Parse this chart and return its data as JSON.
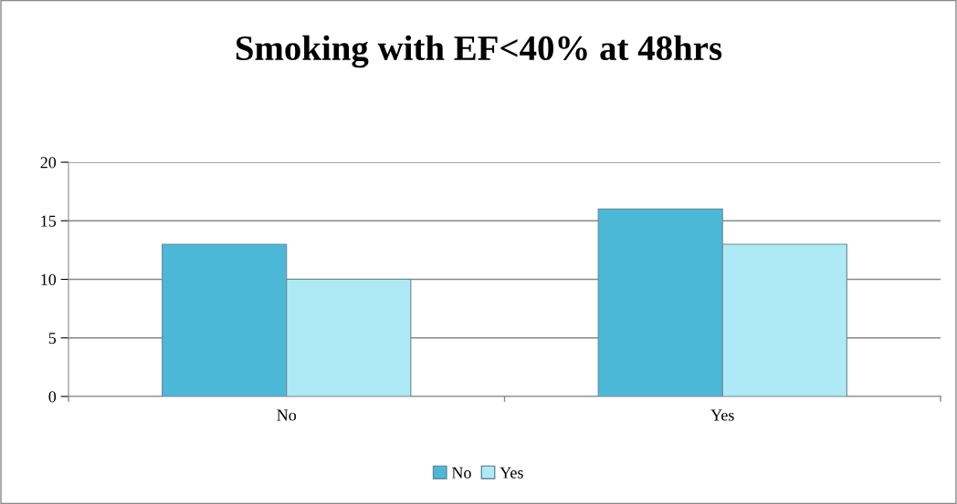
{
  "chart_data": {
    "type": "bar",
    "title": "Smoking with EF<40% at 48hrs",
    "categories": [
      "No",
      "Yes"
    ],
    "series": [
      {
        "name": "No",
        "color": "#4cb8d8",
        "values": [
          13,
          16
        ]
      },
      {
        "name": "Yes",
        "color": "#aeeaf6",
        "values": [
          10,
          13
        ]
      }
    ],
    "ylim": [
      0,
      20
    ],
    "yticks": [
      0,
      5,
      10,
      15,
      20
    ],
    "grid": "y",
    "legend": "bottom"
  }
}
